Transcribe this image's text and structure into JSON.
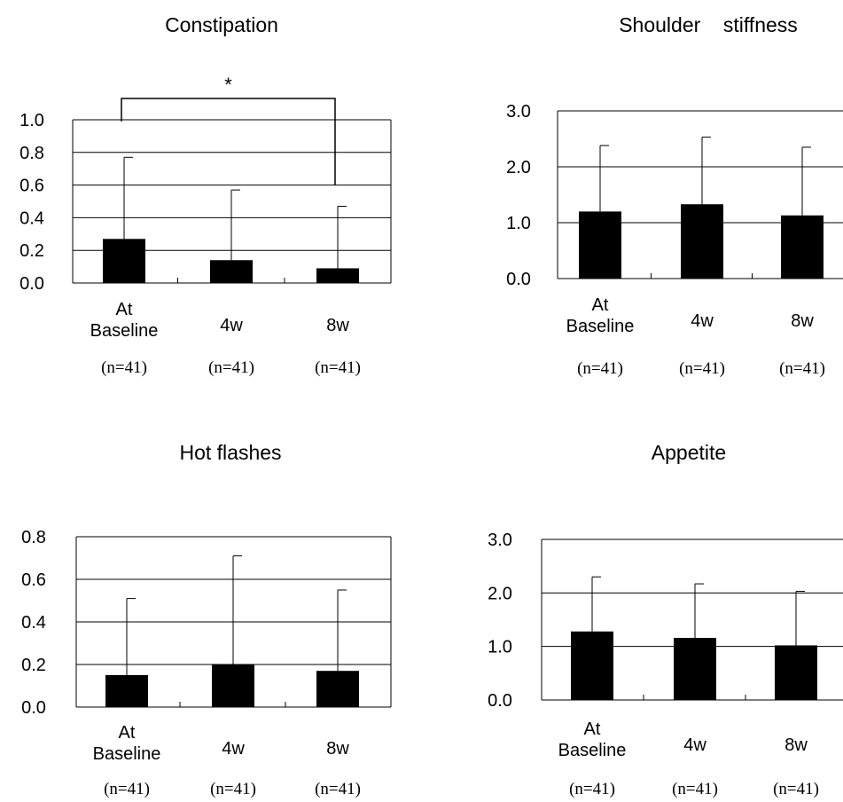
{
  "chart_data": [
    {
      "type": "bar",
      "title": "Constipation",
      "categories": [
        "At Baseline",
        "4w",
        "8w"
      ],
      "category_lines": [
        [
          "At",
          "Baseline"
        ],
        [
          "4w"
        ],
        [
          "8w"
        ]
      ],
      "sample_sizes": [
        "(n=41)",
        "(n=41)",
        "(n=41)"
      ],
      "values": [
        0.27,
        0.14,
        0.09
      ],
      "error_upper": [
        0.77,
        0.57,
        0.47
      ],
      "ylim": [
        0,
        1.0
      ],
      "yticks": [
        "0.0",
        "0.2",
        "0.4",
        "0.6",
        "0.8",
        "1.0"
      ],
      "grid": true,
      "significance": {
        "label": "*",
        "from": "At Baseline",
        "to": "8w"
      }
    },
    {
      "type": "bar",
      "title": "Shoulder    stiffness",
      "categories": [
        "At Baseline",
        "4w",
        "8w"
      ],
      "category_lines": [
        [
          "At",
          "Baseline"
        ],
        [
          "4w"
        ],
        [
          "8w"
        ]
      ],
      "sample_sizes": [
        "(n=41)",
        "(n=41)",
        "(n=41)"
      ],
      "values": [
        1.2,
        1.33,
        1.13
      ],
      "error_upper": [
        2.38,
        2.53,
        2.35
      ],
      "ylim": [
        0,
        3.0
      ],
      "yticks": [
        "0.0",
        "1.0",
        "2.0",
        "3.0"
      ],
      "grid": true
    },
    {
      "type": "bar",
      "title": "Hot flashes",
      "categories": [
        "At Baseline",
        "4w",
        "8w"
      ],
      "category_lines": [
        [
          "At",
          "Baseline"
        ],
        [
          "4w"
        ],
        [
          "8w"
        ]
      ],
      "sample_sizes": [
        "(n=41)",
        "(n=41)",
        "(n=41)"
      ],
      "values": [
        0.15,
        0.2,
        0.17
      ],
      "error_upper": [
        0.51,
        0.71,
        0.55
      ],
      "ylim": [
        0,
        0.8
      ],
      "yticks": [
        "0.0",
        "0.2",
        "0.4",
        "0.6",
        "0.8"
      ],
      "grid": true
    },
    {
      "type": "bar",
      "title": "Appetite",
      "categories": [
        "At Baseline",
        "4w",
        "8w"
      ],
      "category_lines": [
        [
          "At",
          "Baseline"
        ],
        [
          "4w"
        ],
        [
          "8w"
        ]
      ],
      "sample_sizes": [
        "(n=41)",
        "(n=41)",
        "(n=41)"
      ],
      "values": [
        1.28,
        1.16,
        1.02
      ],
      "error_upper": [
        2.3,
        2.17,
        2.03
      ],
      "ylim": [
        0,
        3.0
      ],
      "yticks": [
        "0.0",
        "1.0",
        "2.0",
        "3.0"
      ],
      "grid": true
    }
  ]
}
